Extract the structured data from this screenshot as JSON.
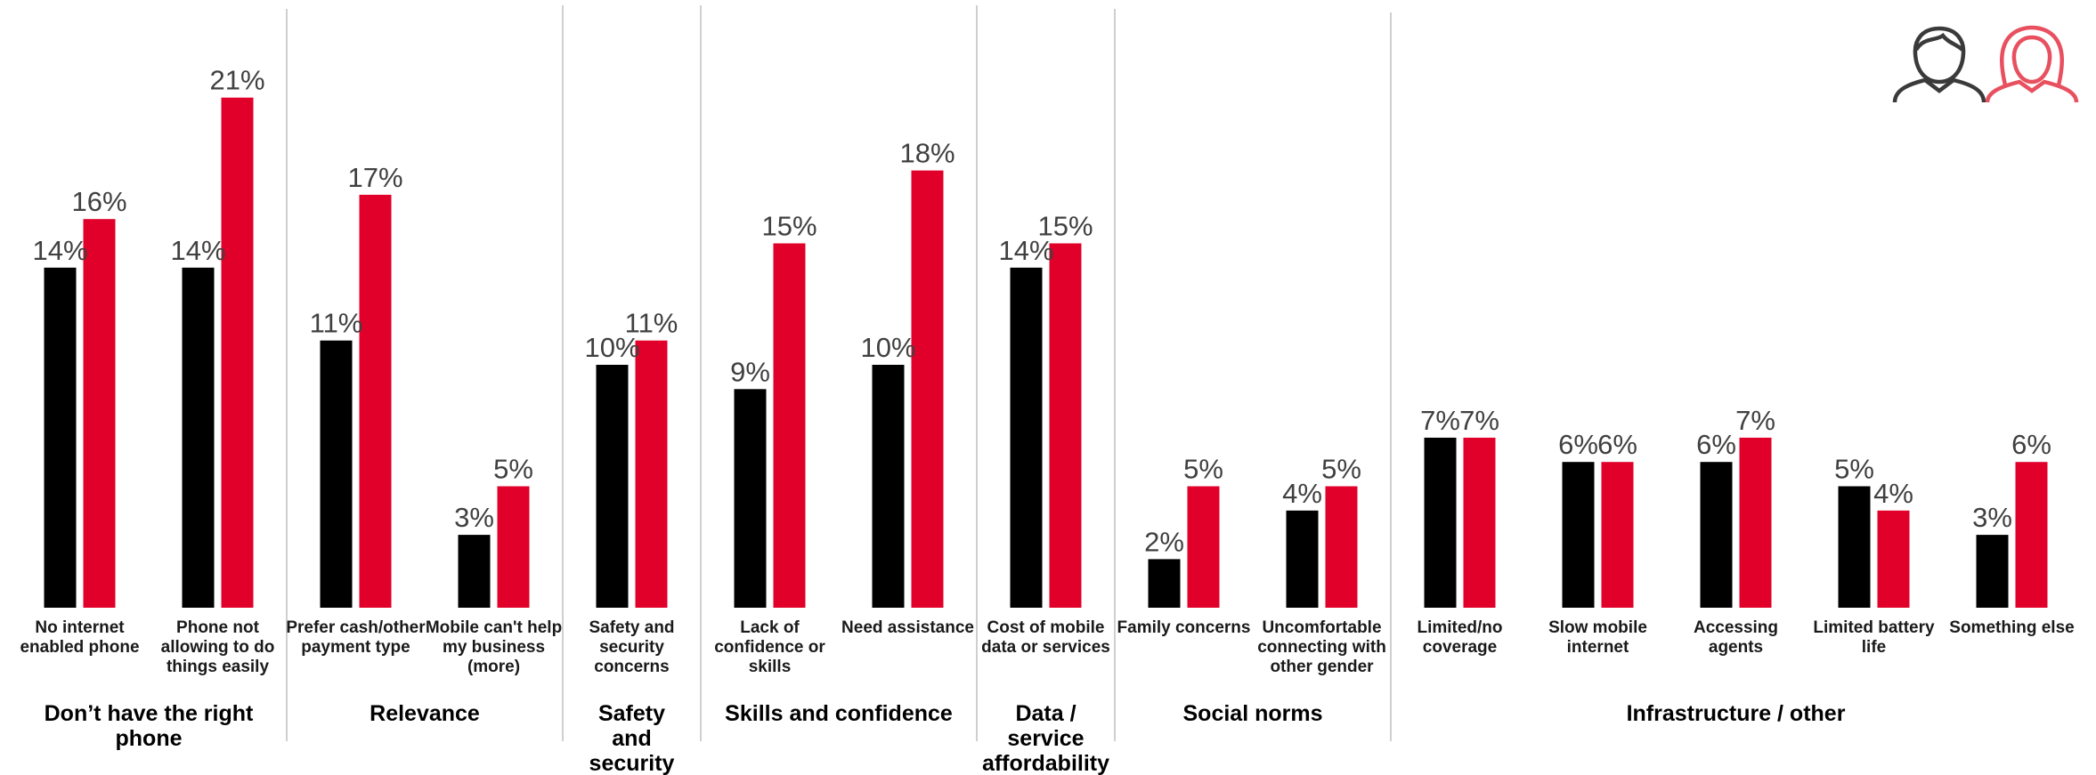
{
  "colors": {
    "male": "#000000",
    "female": "#e0002a",
    "male_icon": "#3a3a3a",
    "female_icon": "#e8505f"
  },
  "legend": {
    "male_icon": "man-icon",
    "female_icon": "woman-icon"
  },
  "chart_data": {
    "type": "bar",
    "title": "",
    "xlabel": "",
    "ylabel": "",
    "ylim": [
      0,
      25
    ],
    "grid": false,
    "series": [
      {
        "values": [
          14,
          14,
          11,
          3,
          10,
          9,
          10,
          14,
          2,
          4,
          7,
          6,
          6,
          5,
          3
        ],
        "labels": [
          "14%",
          "14%",
          "11%",
          "3%",
          "10%",
          "9%",
          "10%",
          "14%",
          "2%",
          "4%",
          "7%",
          "6%",
          "6%",
          "5%",
          "3%"
        ]
      },
      {
        "values": [
          16,
          21,
          17,
          5,
          11,
          15,
          18,
          15,
          5,
          5,
          7,
          6,
          7,
          4,
          6
        ],
        "labels": [
          "16%",
          "21%",
          "17%",
          "5%",
          "11%",
          "15%",
          "18%",
          "15%",
          "5%",
          "5%",
          "7%",
          "6%",
          "7%",
          "4%",
          "6%"
        ]
      }
    ],
    "categories": [
      [
        "No internet",
        "enabled phone"
      ],
      [
        "Phone not",
        "allowing to do",
        "things easily"
      ],
      [
        "Prefer cash/other",
        "payment type"
      ],
      [
        "Mobile can't help",
        "my business",
        "(more)"
      ],
      [
        "Safety and",
        "security",
        "concerns"
      ],
      [
        "Lack of",
        "confidence or",
        "skills"
      ],
      [
        "Need assistance"
      ],
      [
        "Cost of mobile",
        "data or services"
      ],
      [
        "Family concerns"
      ],
      [
        "Uncomfortable",
        "connecting with",
        "other gender"
      ],
      [
        "Limited/no",
        "coverage"
      ],
      [
        "Slow mobile",
        "internet"
      ],
      [
        "Accessing",
        "agents"
      ],
      [
        "Limited battery",
        "life"
      ],
      [
        "Something else"
      ]
    ],
    "groups": [
      {
        "label": [
          "Don’t have the right",
          "phone"
        ],
        "count": 2
      },
      {
        "label": [
          "Relevance"
        ],
        "count": 2
      },
      {
        "label": [
          "Safety",
          "and",
          "security"
        ],
        "count": 1
      },
      {
        "label": [
          "Skills and confidence"
        ],
        "count": 2
      },
      {
        "label": [
          "Data /",
          "service",
          "affordability"
        ],
        "count": 1
      },
      {
        "label": [
          "Social norms"
        ],
        "count": 2
      },
      {
        "label": [
          "Infrastructure / other"
        ],
        "count": 5
      }
    ]
  }
}
